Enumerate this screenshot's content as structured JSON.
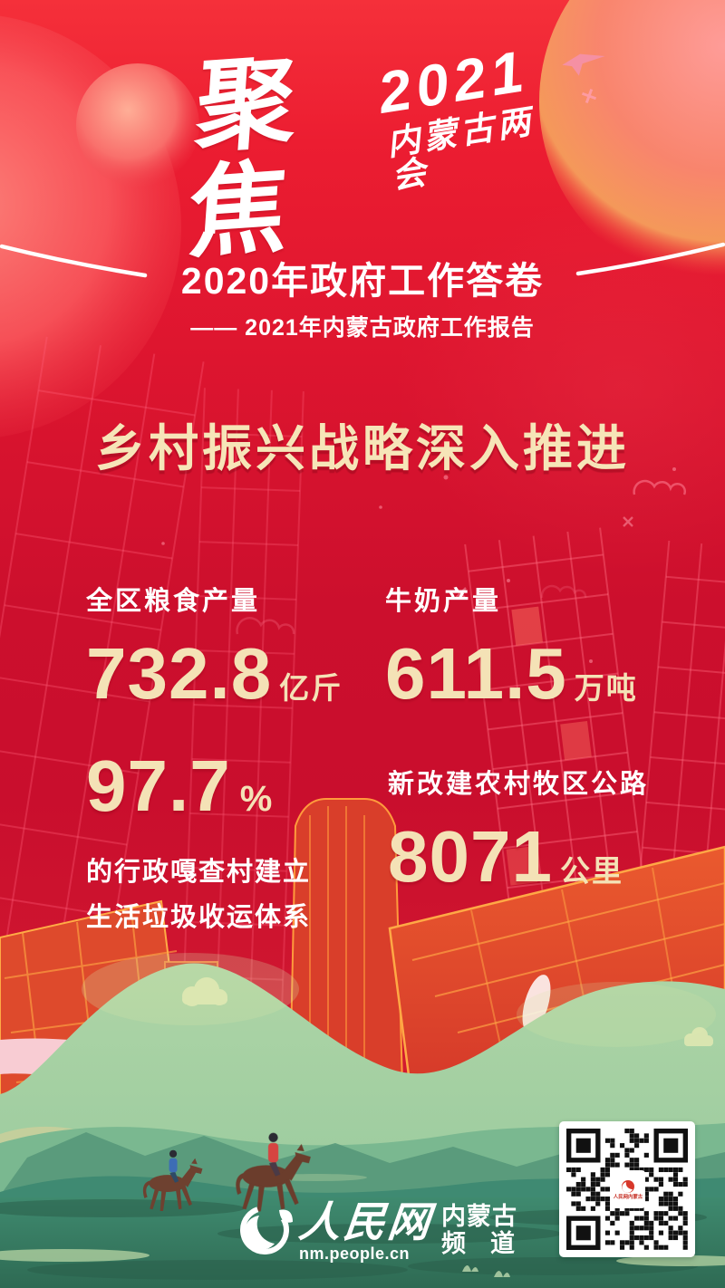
{
  "brand": {
    "focus": "聚焦",
    "year": "2021",
    "event": "内蒙古两会"
  },
  "header": {
    "title": "2020年政府工作答卷",
    "subtitle": "—— 2021年内蒙古政府工作报告"
  },
  "headline": "乡村振兴战略深入推进",
  "stats": [
    {
      "label": "全区粮食产量",
      "value": "732.8",
      "unit": "亿斤"
    },
    {
      "label": "牛奶产量",
      "value": "611.5",
      "unit": "万吨"
    },
    {
      "value": "97.7",
      "unit": "%",
      "desc1": "的行政嘎查村建立",
      "desc2": "生活垃圾收运体系"
    },
    {
      "label": "新改建农村牧区公路",
      "value": "8071",
      "unit": "公里"
    }
  ],
  "footer": {
    "site_name": "人民网",
    "site_url": "nm.people.cn",
    "channel_top": "内蒙古",
    "channel_bottom": "频道",
    "qr_center_text": "人民网内蒙古"
  },
  "colors": {
    "background_red": "#cc0f2d",
    "accent_gold": "#f4e2b6",
    "label_white": "#ffffff",
    "city_line_pink": "#ff5d78",
    "city_orange": "#e14c2b",
    "city_outline_yellow": "#ffa845",
    "hill_light_green": "#a7d0a4",
    "hill_mid_green": "#7ab890",
    "hill_teal": "#3f8a72",
    "meadow_dark_green": "#35745d",
    "ribbon_pink": "#f8ccd3",
    "rider_blue": "#3d6db5",
    "rider_red": "#d64541",
    "horse_brown": "#6e4130"
  }
}
